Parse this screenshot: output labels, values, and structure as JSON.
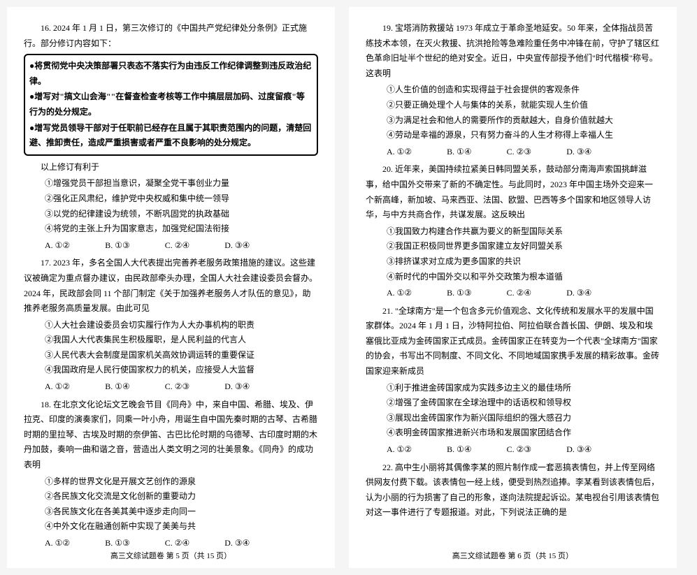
{
  "page5": {
    "q16": {
      "stem1": "16. 2024 年 1 月 1 日，第三次修订的《中国共产党纪律处分条例》正式施行。部分修订内容如下：",
      "box": [
        "●将贯彻党中央决策部署只表态不落实行为由违反工作纪律调整到违反政治纪律。",
        "●增写对\"搞文山会海\"\"在督查检查考核等工作中搞层层加码、过度留痕\"等行为的处分规定。",
        "●增写党员领导干部对于任职前已经存在且属于其职责范围内的问题，清楚回避、推卸责任，造成严重损害或者严重不良影响的处分规定。"
      ],
      "stem2": "以上修订有利于",
      "items": [
        "①增强党员干部担当意识，凝聚全党干事创业力量",
        "②强化正风肃纪，维护党中央权威和集中统一领导",
        "③以党的纪律建设为统领，不断巩固党的执政基础",
        "④将党的主张上升为国家意志，加强党纪国法衔接"
      ],
      "opts": [
        "A. ①②",
        "B. ①③",
        "C. ②④",
        "D. ③④"
      ]
    },
    "q17": {
      "stem": "17. 2023 年，多名全国人大代表提出完善养老服务政策措施的建议。这些建议被确定为重点督办建议，由民政部牵头办理，全国人大社会建设委员会督办。2024 年，民政部会同 11 个部门制定《关于加强养老服务人才队伍的意见》，助推养老服务高质量发展。由此可见",
      "items": [
        "①人大社会建设委员会切实履行作为人大办事机构的职责",
        "②我国人大代表集民生积极履职，是人民利益的代言人",
        "③人民代表大会制度是国家机关高效协调运转的重要保证",
        "④我国政府是人民行使国家权力的机关，应接受人大监督"
      ],
      "opts": [
        "A. ①②",
        "B. ①④",
        "C. ②③",
        "D. ③④"
      ]
    },
    "q18": {
      "stem": "18. 在北京文化论坛文艺晚会节目《同舟》中，来自中国、希腊、埃及、伊拉克、印度的演奏家们，同乘一叶小舟，用诞生自中国先秦时期的古琴、古希腊时期的里拉琴、古埃及时期的奈伊笛、古巴比伦时期的乌德琴、古印度时期的木丹加鼓，奏响一曲和谐之音，营造出人类文明之河的壮美景象。《同舟》的成功表明",
      "items": [
        "①多样的世界文化是开展文艺创作的源泉",
        "②各民族文化交流是文化创新的重要动力",
        "③各民族文化在各美其美中逐步走向同一",
        "④中外文化在融通创新中实现了美美与共"
      ],
      "opts": [
        "A. ①②",
        "B. ①③",
        "C. ②④",
        "D. ③④"
      ]
    },
    "footer": "高三文综试题卷 第 5 页（共 15 页）"
  },
  "page6": {
    "q19": {
      "stem": "19. 宝塔消防救援站 1973 年成立于革命圣地延安。50 年来，全体指战员苦练技术本领，在灭火救援、抗洪抢险等急难险重任务中冲锋在前，守护了辖区红色革命旧址半个世纪的绝对安全。近日，中央宣传部授予他们\"时代楷模\"称号。这表明",
      "items": [
        "①人生价值的创造和实现得益于社会提供的客观条件",
        "②只要正确处理个人与集体的关系，就能实现人生价值",
        "③为满足社会和他人的需要所作的贡献越大，自身价值就越大",
        "④劳动是幸福的源泉，只有努力奋斗的人生才称得上幸福人生"
      ],
      "opts": [
        "A. ①②",
        "B. ①④",
        "C. ②③",
        "D. ③④"
      ]
    },
    "q20": {
      "stem": "20. 近年来，美国持续拉紧美日韩同盟关系，鼓动部分南海声索国挑衅滋事，给中国外交带来了新的不确定性。与此同时，2023 年中国主场外交迎来一个新高峰，新加坡、马来西亚、法国、欧盟、巴西等多个国家和地区领导人访华，与中方共商合作，共谋发展。这反映出",
      "items": [
        "①我国致力构建合作共赢为要义的新型国际关系",
        "②我国正积极同世界更多国家建立友好同盟关系",
        "③排挤谋求对立成为更多国家的共识",
        "④新时代的中国外交以和平外交政策为根本道循"
      ],
      "opts": [
        "A. ①②",
        "B. ①③",
        "C. ②④",
        "D. ③④"
      ]
    },
    "q21": {
      "stem": "21. \"全球南方\"是一个包含多元价值观念、文化传统和发展水平的发展中国家群体。2024 年 1 月 1 日，沙特阿拉伯、阿拉伯联合酋长国、伊朗、埃及和埃塞俄比亚成为金砖国家正式成员。金砖国家正在转变为一个代表\"全球南方\"国家的协会，书写出不同制度、不同文化、不同地域国家携手发展的精彩故事。金砖国家迎来新成员",
      "items": [
        "①利于推进金砖国家成为实践多边主义的最佳场所",
        "②增强了金砖国家在全球治理中的话语权和领导权",
        "③展现出金砖国家作为新兴国际组织的强大感召力",
        "④表明金砖国家推进新兴市场和发展国家团结合作"
      ],
      "opts": [
        "A. ①②",
        "B. ①④",
        "C. ②③",
        "D. ③④"
      ]
    },
    "q22": {
      "stem": "22. 高中生小丽将其偶像李某的照片制作成一套恶搞表情包，并上传至网络供网友付费下载。该表情包一经上线，便受到热烈追捧。李某看到该表情包后，认为小丽的行为损害了自己的形象，遂向法院提起诉讼。某电视台引用该表情包对这一事件进行了专题报道。对此，下列说法正确的是"
    },
    "footer": "高三文综试题卷 第 6 页（共 15 页）"
  }
}
